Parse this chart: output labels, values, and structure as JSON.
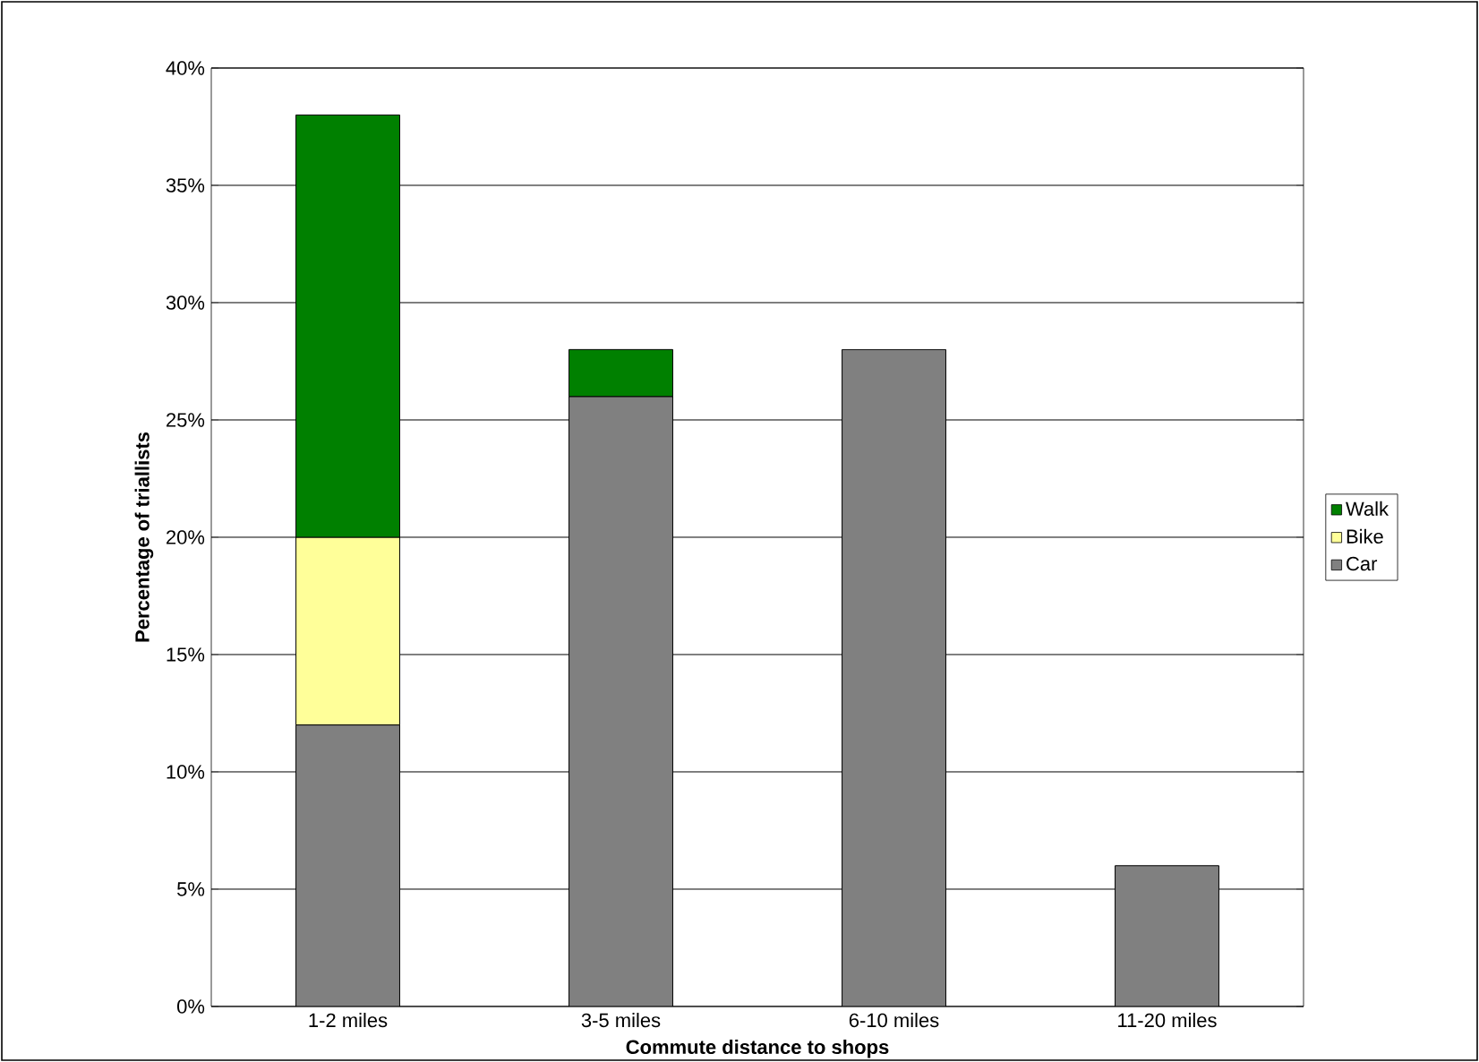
{
  "chart_data": {
    "type": "bar",
    "stacked": true,
    "xlabel": "Commute distance to shops",
    "ylabel": "Percentage of triallists",
    "categories": [
      "1-2 miles",
      "3-5 miles",
      "6-10 miles",
      "11-20 miles"
    ],
    "series": [
      {
        "name": "Car",
        "color": "#808080",
        "values": [
          12,
          26,
          28,
          6
        ]
      },
      {
        "name": "Bike",
        "color": "#ffff99",
        "values": [
          8,
          null,
          null,
          null
        ]
      },
      {
        "name": "Walk",
        "color": "#008000",
        "values": [
          18,
          2,
          null,
          null
        ]
      }
    ],
    "ylim": [
      0,
      40
    ],
    "yticks": [
      {
        "value": 0,
        "label": "0%"
      },
      {
        "value": 5,
        "label": "5%"
      },
      {
        "value": 10,
        "label": "10%"
      },
      {
        "value": 15,
        "label": "15%"
      },
      {
        "value": 20,
        "label": "20%"
      },
      {
        "value": 25,
        "label": "25%"
      },
      {
        "value": 30,
        "label": "30%"
      },
      {
        "value": 35,
        "label": "35%"
      },
      {
        "value": 40,
        "label": "40%"
      }
    ],
    "grid": "y",
    "legend": "right"
  }
}
